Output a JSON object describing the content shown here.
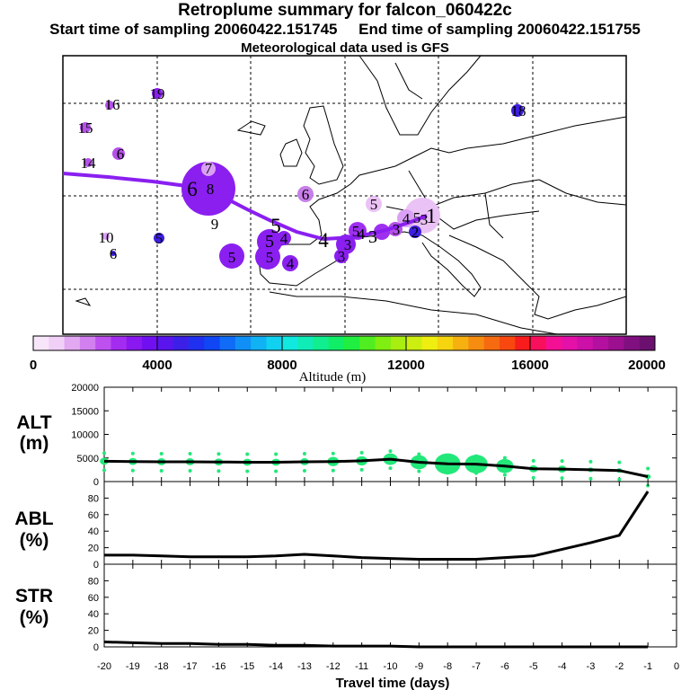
{
  "title": "Retroplume summary for falcon_060422c",
  "start_time": "Start time of sampling 20060422.151745",
  "end_time": "End time of sampling 20060422.151755",
  "met_data": "Meteorological data used is GFS",
  "colors": {
    "plume": "#8a1ff0",
    "dots": "#22e87a",
    "line": "#000000"
  },
  "colorbar": {
    "ticks": [
      "0",
      "4000",
      "8000",
      "12000",
      "16000",
      "20000"
    ],
    "label": "Altitude (m)"
  },
  "map_labels": [
    {
      "text": "16"
    },
    {
      "text": "19"
    },
    {
      "text": "18"
    },
    {
      "text": "15"
    },
    {
      "text": "14"
    },
    {
      "text": "6"
    },
    {
      "text": "7"
    },
    {
      "text": "6"
    },
    {
      "text": "8"
    },
    {
      "text": "9"
    },
    {
      "text": "6"
    },
    {
      "text": "5"
    },
    {
      "text": "5"
    },
    {
      "text": "4"
    },
    {
      "text": "5"
    },
    {
      "text": "5"
    },
    {
      "text": "4"
    },
    {
      "text": "4"
    },
    {
      "text": "5"
    },
    {
      "text": "3"
    },
    {
      "text": "3"
    },
    {
      "text": "4"
    },
    {
      "text": "3"
    },
    {
      "text": "3"
    },
    {
      "text": "2"
    },
    {
      "text": "4"
    },
    {
      "text": "5"
    },
    {
      "text": "3"
    },
    {
      "text": "1"
    },
    {
      "text": "10"
    },
    {
      "text": "5"
    },
    {
      "text": "6"
    },
    {
      "text": "5"
    }
  ],
  "panel_labels": {
    "alt": [
      "ALT",
      "(m)"
    ],
    "abl": [
      "ABL",
      "(%)"
    ],
    "str": [
      "STR",
      "(%)"
    ]
  },
  "chart_data": [
    {
      "type": "line",
      "name": "ALT (m)",
      "x": [
        -20,
        -19,
        -18,
        -17,
        -16,
        -15,
        -14,
        -13,
        -12,
        -11,
        -10,
        -9,
        -8,
        -7,
        -6,
        -5,
        -4,
        -3,
        -2,
        -1
      ],
      "values": [
        4300,
        4250,
        4200,
        4200,
        4150,
        4100,
        4100,
        4200,
        4250,
        4400,
        4750,
        4100,
        3750,
        3700,
        3300,
        2700,
        2650,
        2500,
        2350,
        1050
      ],
      "scatter_sizes": [
        3,
        3,
        3,
        3,
        3,
        3,
        3,
        3,
        4,
        4,
        5,
        6,
        9,
        8,
        6,
        3,
        3,
        2,
        2,
        2
      ],
      "xlim": [
        -20,
        0
      ],
      "ylim": [
        0,
        20000
      ],
      "yticks": [
        0,
        5000,
        10000,
        15000,
        20000
      ]
    },
    {
      "type": "line",
      "name": "ABL (%)",
      "x": [
        -20,
        -19,
        -18,
        -17,
        -16,
        -15,
        -14,
        -13,
        -12,
        -11,
        -10,
        -9,
        -8,
        -7,
        -6,
        -5,
        -4,
        -3,
        -2,
        -1
      ],
      "values": [
        11,
        11,
        10,
        9,
        9,
        9,
        10,
        12,
        10,
        8,
        7,
        6,
        6,
        6,
        8,
        10,
        18,
        26,
        35,
        88
      ],
      "xlim": [
        -20,
        0
      ],
      "ylim": [
        0,
        100
      ],
      "yticks": [
        0,
        20,
        40,
        60,
        80
      ]
    },
    {
      "type": "line",
      "name": "STR (%)",
      "x": [
        -20,
        -19,
        -18,
        -17,
        -16,
        -15,
        -14,
        -13,
        -12,
        -11,
        -10,
        -9,
        -8,
        -7,
        -6,
        -5,
        -4,
        -3,
        -2,
        -1
      ],
      "values": [
        6,
        5,
        4,
        4,
        3,
        3,
        2,
        2,
        1,
        1,
        1,
        0,
        0,
        0,
        0,
        0,
        0,
        0,
        0,
        0
      ],
      "xlim": [
        -20,
        0
      ],
      "ylim": [
        0,
        100
      ],
      "yticks": [
        0,
        20,
        40,
        60,
        80
      ],
      "xlabel": "Travel time (days)",
      "xticks": [
        "-20",
        "-19",
        "-18",
        "-17",
        "-16",
        "-15",
        "-14",
        "-13",
        "-12",
        "-11",
        "-10",
        "-9",
        "-8",
        "-7",
        "-6",
        "-5",
        "-4",
        "-3",
        "-2",
        "-1",
        "0"
      ]
    }
  ]
}
